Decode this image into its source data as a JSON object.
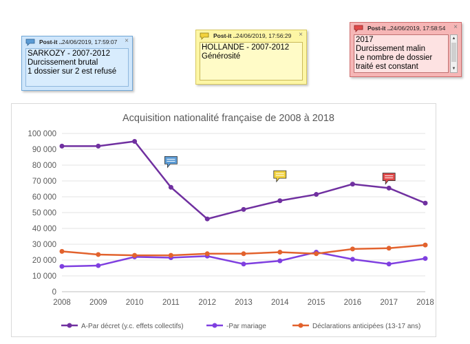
{
  "notes": [
    {
      "title": "Post-it ..",
      "timestamp": "24/06/2019, 17:59:07",
      "text": "SARKOZY - 2007-2012\nDurcissement brutal\n1 dossier sur 2 est refusé"
    },
    {
      "title": "Post-it ..",
      "timestamp": "24/06/2019, 17:56:29",
      "text": "HOLLANDE - 2007-2012\nGénérosité"
    },
    {
      "title": "Post-it ..",
      "timestamp": "24/06/2019, 17:58:54",
      "text": "2017\nDurcissement malin\nLe nombre de dossier\ntraité est constant"
    }
  ],
  "note_colors": [
    "#5b9bd5",
    "#f2d23c",
    "#e04a4a"
  ],
  "close_glyph": "×",
  "chart_data": {
    "type": "line",
    "title": "Acquisition nationalité française de 2008 à 2018",
    "x": [
      "2008",
      "2009",
      "2010",
      "2011",
      "2012",
      "2013",
      "2014",
      "2015",
      "2016",
      "2017",
      "2018"
    ],
    "ylim": [
      0,
      100000
    ],
    "yticks": [
      "0",
      "10 000",
      "20 000",
      "30 000",
      "40 000",
      "50 000",
      "60 000",
      "70 000",
      "80 000",
      "90 000",
      "100 000"
    ],
    "grid": true,
    "legend": "bottom",
    "series": [
      {
        "name": "A-Par décret (y.c. effets collectifs)",
        "color": "#7030a0",
        "values": [
          92000,
          92000,
          95000,
          66000,
          46000,
          52000,
          57500,
          61500,
          68000,
          65500,
          56000
        ]
      },
      {
        "name": "-Par mariage",
        "color": "#7f3fe0",
        "values": [
          16000,
          16500,
          22000,
          21500,
          22500,
          17500,
          19500,
          25000,
          20500,
          17500,
          21000
        ]
      },
      {
        "name": "Déclarations anticipées (13-17 ans)",
        "color": "#e2622d",
        "values": [
          25500,
          23500,
          23000,
          23000,
          24000,
          24000,
          25000,
          24000,
          27000,
          27500,
          29500
        ]
      }
    ]
  },
  "chart_markers": [
    {
      "year": "2011",
      "value": 82000,
      "color": "#5b9bd5"
    },
    {
      "year": "2014",
      "value": 73000,
      "color": "#f2d23c"
    },
    {
      "year": "2017",
      "value": 71500,
      "color": "#e04a4a"
    }
  ]
}
